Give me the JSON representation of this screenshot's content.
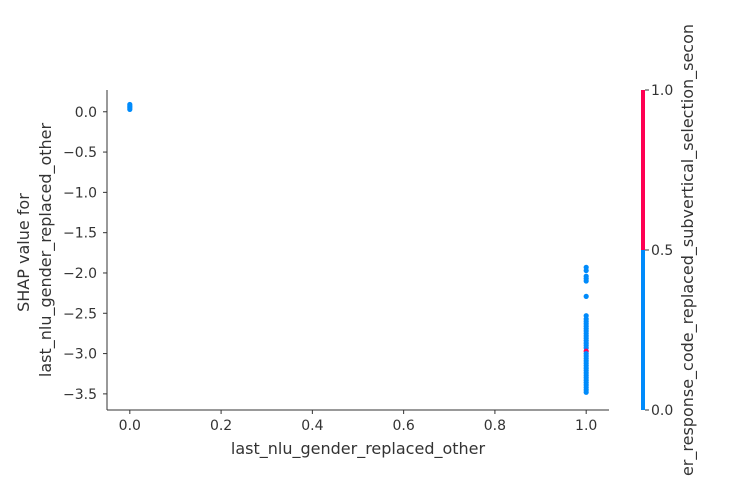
{
  "chart_data": {
    "type": "scatter",
    "title": "",
    "xlabel": "last_nlu_gender_replaced_other",
    "ylabel": [
      "SHAP value for",
      "last_nlu_gender_replaced_other"
    ],
    "xlim": [
      -0.05,
      1.05
    ],
    "ylim": [
      -3.7,
      0.27
    ],
    "x_ticks": [
      0.0,
      0.2,
      0.4,
      0.6,
      0.8,
      1.0
    ],
    "x_tick_labels": [
      "0.0",
      "0.2",
      "0.4",
      "0.6",
      "0.8",
      "1.0"
    ],
    "y_ticks": [
      0.0,
      -0.5,
      -1.0,
      -1.5,
      -2.0,
      -2.5,
      -3.0,
      -3.5
    ],
    "y_tick_labels": [
      "0.0",
      "−0.5",
      "−1.0",
      "−1.5",
      "−2.0",
      "−2.5",
      "−3.0",
      "−3.5"
    ],
    "grid": false,
    "colorbar": {
      "label": "er_response_code_replaced_subvertical_selection_secon",
      "ticks": [
        0.0,
        0.5,
        1.0
      ],
      "tick_labels": [
        "0.0",
        "0.5",
        "1.0"
      ],
      "colors": {
        "low": "#008bfb",
        "high": "#ff0052"
      }
    },
    "points": [
      {
        "x": 0.0,
        "y": 0.09,
        "c": 0
      },
      {
        "x": 0.0,
        "y": 0.07,
        "c": 0
      },
      {
        "x": 0.0,
        "y": 0.05,
        "c": 0
      },
      {
        "x": 0.0,
        "y": 0.03,
        "c": 0
      },
      {
        "x": 1.0,
        "y": -1.93,
        "c": 0
      },
      {
        "x": 1.0,
        "y": -1.97,
        "c": 0
      },
      {
        "x": 1.0,
        "y": -2.04,
        "c": 0
      },
      {
        "x": 1.0,
        "y": -2.07,
        "c": 0
      },
      {
        "x": 1.0,
        "y": -2.1,
        "c": 0
      },
      {
        "x": 1.0,
        "y": -2.29,
        "c": 0
      },
      {
        "x": 1.0,
        "y": -2.53,
        "c": 0
      },
      {
        "x": 1.0,
        "y": -2.57,
        "c": 0
      },
      {
        "x": 1.0,
        "y": -2.6,
        "c": 0
      },
      {
        "x": 1.0,
        "y": -2.63,
        "c": 0
      },
      {
        "x": 1.0,
        "y": -2.66,
        "c": 0
      },
      {
        "x": 1.0,
        "y": -2.69,
        "c": 0
      },
      {
        "x": 1.0,
        "y": -2.72,
        "c": 0
      },
      {
        "x": 1.0,
        "y": -2.75,
        "c": 0
      },
      {
        "x": 1.0,
        "y": -2.78,
        "c": 0
      },
      {
        "x": 1.0,
        "y": -2.81,
        "c": 0
      },
      {
        "x": 1.0,
        "y": -2.84,
        "c": 0
      },
      {
        "x": 1.0,
        "y": -2.87,
        "c": 0
      },
      {
        "x": 1.0,
        "y": -2.9,
        "c": 0
      },
      {
        "x": 1.0,
        "y": -2.93,
        "c": 0
      },
      {
        "x": 1.0,
        "y": -2.97,
        "c": 1
      },
      {
        "x": 1.0,
        "y": -3.0,
        "c": 0
      },
      {
        "x": 1.0,
        "y": -3.03,
        "c": 0
      },
      {
        "x": 1.0,
        "y": -3.06,
        "c": 0
      },
      {
        "x": 1.0,
        "y": -3.09,
        "c": 0
      },
      {
        "x": 1.0,
        "y": -3.12,
        "c": 0
      },
      {
        "x": 1.0,
        "y": -3.15,
        "c": 0
      },
      {
        "x": 1.0,
        "y": -3.18,
        "c": 0
      },
      {
        "x": 1.0,
        "y": -3.21,
        "c": 0
      },
      {
        "x": 1.0,
        "y": -3.24,
        "c": 0
      },
      {
        "x": 1.0,
        "y": -3.27,
        "c": 0
      },
      {
        "x": 1.0,
        "y": -3.3,
        "c": 0
      },
      {
        "x": 1.0,
        "y": -3.33,
        "c": 0
      },
      {
        "x": 1.0,
        "y": -3.36,
        "c": 0
      },
      {
        "x": 1.0,
        "y": -3.39,
        "c": 0
      },
      {
        "x": 1.0,
        "y": -3.42,
        "c": 0
      },
      {
        "x": 1.0,
        "y": -3.45,
        "c": 0
      },
      {
        "x": 1.0,
        "y": -3.48,
        "c": 0
      }
    ]
  }
}
